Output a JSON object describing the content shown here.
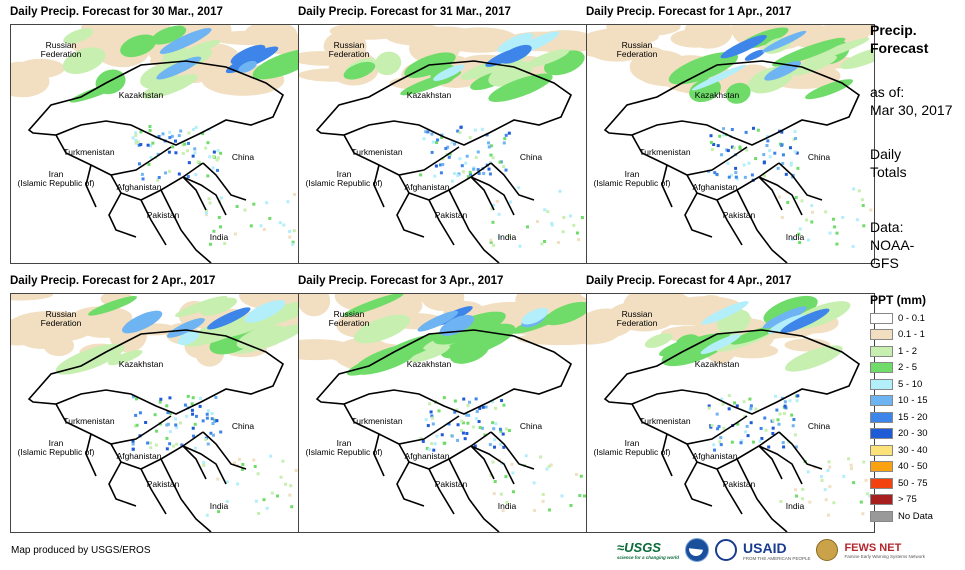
{
  "panels": [
    {
      "title": "Daily Precip. Forecast for 30 Mar., 2017"
    },
    {
      "title": "Daily Precip. Forecast for 31 Mar., 2017"
    },
    {
      "title": "Daily Precip. Forecast for 1 Apr., 2017"
    },
    {
      "title": "Daily Precip. Forecast for 2 Apr., 2017"
    },
    {
      "title": "Daily Precip. Forecast for 3 Apr., 2017"
    },
    {
      "title": "Daily Precip. Forecast for 4 Apr., 2017"
    }
  ],
  "map_labels": {
    "russia": "Russian\nFederation",
    "kazakhstan": "Kazakhstan",
    "turkmenistan": "Turkmenistan",
    "iran": "Iran\n(Islamic Republic of)",
    "afghanistan": "Afghanistan",
    "pakistan": "Pakistan",
    "china": "China",
    "india": "India"
  },
  "sidebar": {
    "heading_line1": "Precip.",
    "heading_line2": "Forecast",
    "asof_label": "as of:",
    "asof_date": "Mar 30, 2017",
    "totals_line1": "Daily",
    "totals_line2": "Totals",
    "data_line1": "Data:",
    "data_line2": "NOAA-",
    "data_line3": "GFS"
  },
  "legend": {
    "title": "PPT (mm)",
    "items": [
      {
        "label": "0 - 0.1",
        "color": "#ffffff"
      },
      {
        "label": "0.1 - 1",
        "color": "#f2dfc1"
      },
      {
        "label": "1 - 2",
        "color": "#c7efb0"
      },
      {
        "label": "2 - 5",
        "color": "#6fdc6a"
      },
      {
        "label": "5 - 10",
        "color": "#b3eefb"
      },
      {
        "label": "10 - 15",
        "color": "#6fb4f2"
      },
      {
        "label": "15 - 20",
        "color": "#3e85ea"
      },
      {
        "label": "20 - 30",
        "color": "#1f5bd6"
      },
      {
        "label": "30 - 40",
        "color": "#fde27a"
      },
      {
        "label": "40 - 50",
        "color": "#fba212"
      },
      {
        "label": "50 - 75",
        "color": "#f2420e"
      },
      {
        "label": "> 75",
        "color": "#a81f1f"
      },
      {
        "label": "No Data",
        "color": "#999999"
      }
    ]
  },
  "footer": {
    "credit": "Map produced by USGS/EROS",
    "usgs": "≈USGS",
    "usgs_sub": "science for a changing world",
    "usaid": "USAID",
    "usaid_sub": "FROM THE AMERICAN PEOPLE",
    "fews": "FEWS NET",
    "fews_sub": "Famine Early Warning Systems Network"
  }
}
